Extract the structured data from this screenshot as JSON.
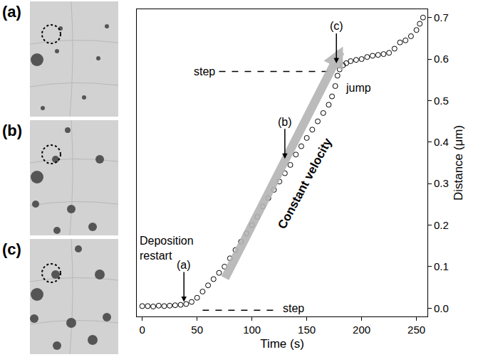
{
  "panels": [
    {
      "label": "(a)"
    },
    {
      "label": "(b)"
    },
    {
      "label": "(c)"
    }
  ],
  "chart_data": {
    "type": "scatter",
    "xlabel": "Time (s)",
    "ylabel": "Distance (μm)",
    "x": [
      0,
      5,
      10,
      15,
      20,
      25,
      30,
      35,
      40,
      45,
      50,
      55,
      60,
      65,
      70,
      75,
      80,
      85,
      90,
      95,
      100,
      105,
      110,
      115,
      120,
      125,
      130,
      135,
      140,
      145,
      150,
      155,
      160,
      165,
      170,
      173,
      176,
      178,
      180,
      183,
      186,
      190,
      195,
      200,
      205,
      210,
      215,
      220,
      225,
      230,
      235,
      240,
      245,
      250,
      253,
      256
    ],
    "values": [
      0.005,
      0.005,
      0.004,
      0.006,
      0.005,
      0.006,
      0.007,
      0.008,
      0.01,
      0.015,
      0.025,
      0.04,
      0.055,
      0.07,
      0.085,
      0.1,
      0.12,
      0.14,
      0.16,
      0.18,
      0.2,
      0.22,
      0.245,
      0.265,
      0.285,
      0.305,
      0.325,
      0.345,
      0.37,
      0.39,
      0.41,
      0.43,
      0.45,
      0.47,
      0.49,
      0.51,
      0.535,
      0.56,
      0.575,
      0.585,
      0.59,
      0.595,
      0.598,
      0.6,
      0.605,
      0.608,
      0.61,
      0.612,
      0.615,
      0.625,
      0.64,
      0.645,
      0.655,
      0.67,
      0.685,
      0.7
    ],
    "color": "#000000",
    "marker": "open circle",
    "xlim": [
      -5,
      260
    ],
    "xticks": [
      0,
      50,
      100,
      150,
      200,
      250
    ],
    "ylim": [
      -0.02,
      0.72
    ],
    "yticks": [
      {
        "value": 0,
        "label": "0.0"
      },
      0.1,
      0.2,
      0.3,
      0.4,
      0.5,
      0.6,
      0.7
    ],
    "grid": false,
    "annotations": [
      {
        "text": "Deposition restart",
        "x": 22,
        "y": 0.145
      },
      {
        "text": "(a)",
        "x": 38,
        "y": 0.015,
        "arrow": true
      },
      {
        "text": "(b)",
        "x": 130,
        "y": 0.36,
        "arrow": true
      },
      {
        "text": "(c)",
        "x": 177,
        "y": 0.59,
        "arrow": true
      },
      {
        "text": "step",
        "x": 57,
        "y": 0.57
      },
      {
        "text": "step",
        "x": 138,
        "y": 0.0
      },
      {
        "text": "jump",
        "x": 197,
        "y": 0.53
      },
      {
        "text": "Constant velocity",
        "x": 148,
        "y": 0.3,
        "bold": true
      }
    ],
    "reference_lines": [
      {
        "x": [
          70,
          172
        ],
        "y": 0.57,
        "line_style": "dashed"
      },
      {
        "x": [
          55,
          122
        ],
        "y": -0.005,
        "line_style": "dashed"
      }
    ],
    "arrows": [
      {
        "x": [
          75,
          183
        ],
        "y": [
          0.07,
          0.63
        ],
        "color": "#b4b4b4"
      }
    ]
  }
}
